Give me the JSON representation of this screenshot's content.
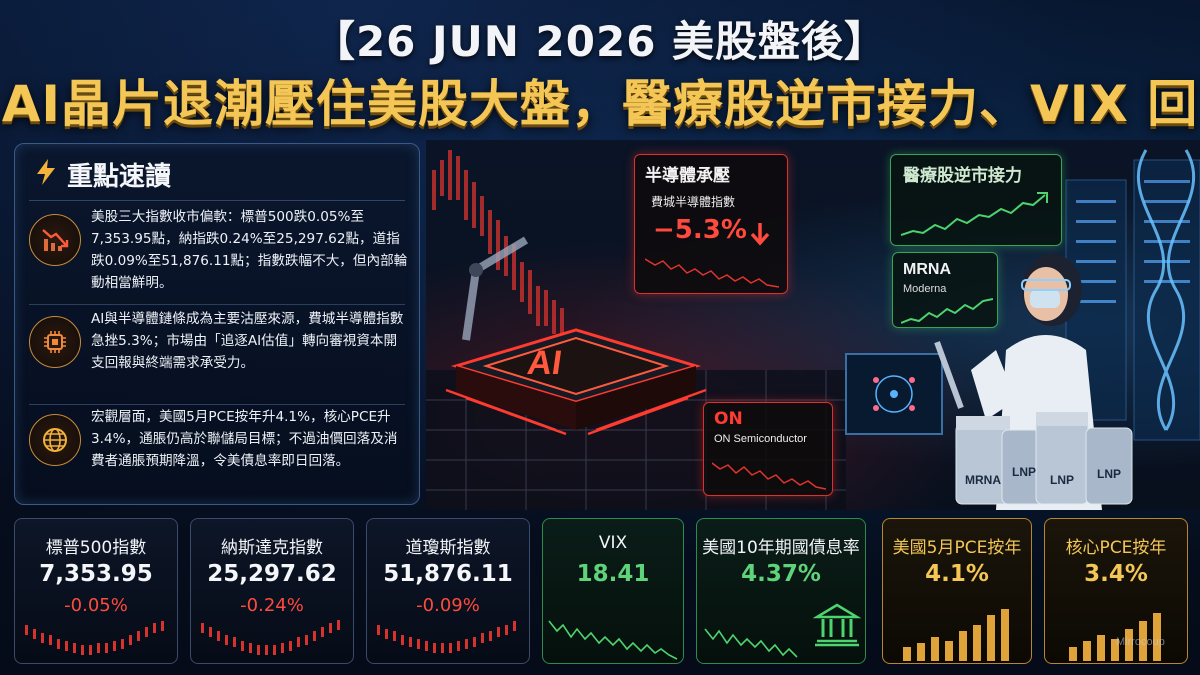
{
  "header": {
    "title_line1": "【26 JUN 2026 美股盤後】",
    "title_line2": "AI晶片退潮壓住美股大盤，醫療股逆市接力、VIX 回落"
  },
  "key_points": {
    "title": "重點速讀",
    "title_icon": "lightning-icon",
    "items": [
      {
        "icon": "chart-down-icon",
        "text": "美股三大指數收市偏軟：標普500跌0.05%至7,353.95點，納指跌0.24%至25,297.62點，道指跌0.09%至51,876.11點；指數跌幅不大，但內部輪動相當鮮明。"
      },
      {
        "icon": "chip-icon",
        "text": "AI與半導體鏈條成為主要沽壓來源，費城半導體指數急挫5.3%；市場由「追逐AI估值」轉向審視資本開支回報與終端需求承受力。"
      },
      {
        "icon": "globe-icon",
        "text": "宏觀層面，美國5月PCE按年升4.1%，核心PCE升3.4%，通脹仍高於聯儲局目標；不過油價回落及消費者通脹預期降溫，令美債息率即日回落。"
      }
    ]
  },
  "scene": {
    "chip_label": "AI",
    "semi_card": {
      "title": "半導體承壓",
      "subtitle": "費城半導體指數",
      "value": "−5.3%"
    },
    "on_card": {
      "title": "ON",
      "subtitle": "ON Semiconductor"
    },
    "health_card": {
      "title": "醫療股逆市接力"
    },
    "mrna_card": {
      "title": "MRNA",
      "subtitle": "Moderna"
    },
    "vials": [
      "MRNA",
      "LNP",
      "LNP",
      "LNP"
    ]
  },
  "stats": [
    {
      "label": "標普500指數",
      "value": "7,353.95",
      "change": "-0.05%",
      "style": "idx"
    },
    {
      "label": "納斯達克指數",
      "value": "25,297.62",
      "change": "-0.24%",
      "style": "idx"
    },
    {
      "label": "道瓊斯指數",
      "value": "51,876.11",
      "change": "-0.09%",
      "style": "idx"
    },
    {
      "label": "VIX",
      "value": "18.41",
      "style": "grn"
    },
    {
      "label": "美國10年期國債息率",
      "value": "4.37%",
      "style": "grn"
    },
    {
      "label": "美國5月PCE按年",
      "value": "4.1%",
      "style": "gld"
    },
    {
      "label": "核心PCE按年",
      "value": "3.4%",
      "style": "gld"
    }
  ],
  "watermark": "Mirrocoup",
  "colors": {
    "gold": "#f3c655",
    "red": "#ff4a3d",
    "green": "#5fd37a",
    "navy": "#050b18"
  }
}
